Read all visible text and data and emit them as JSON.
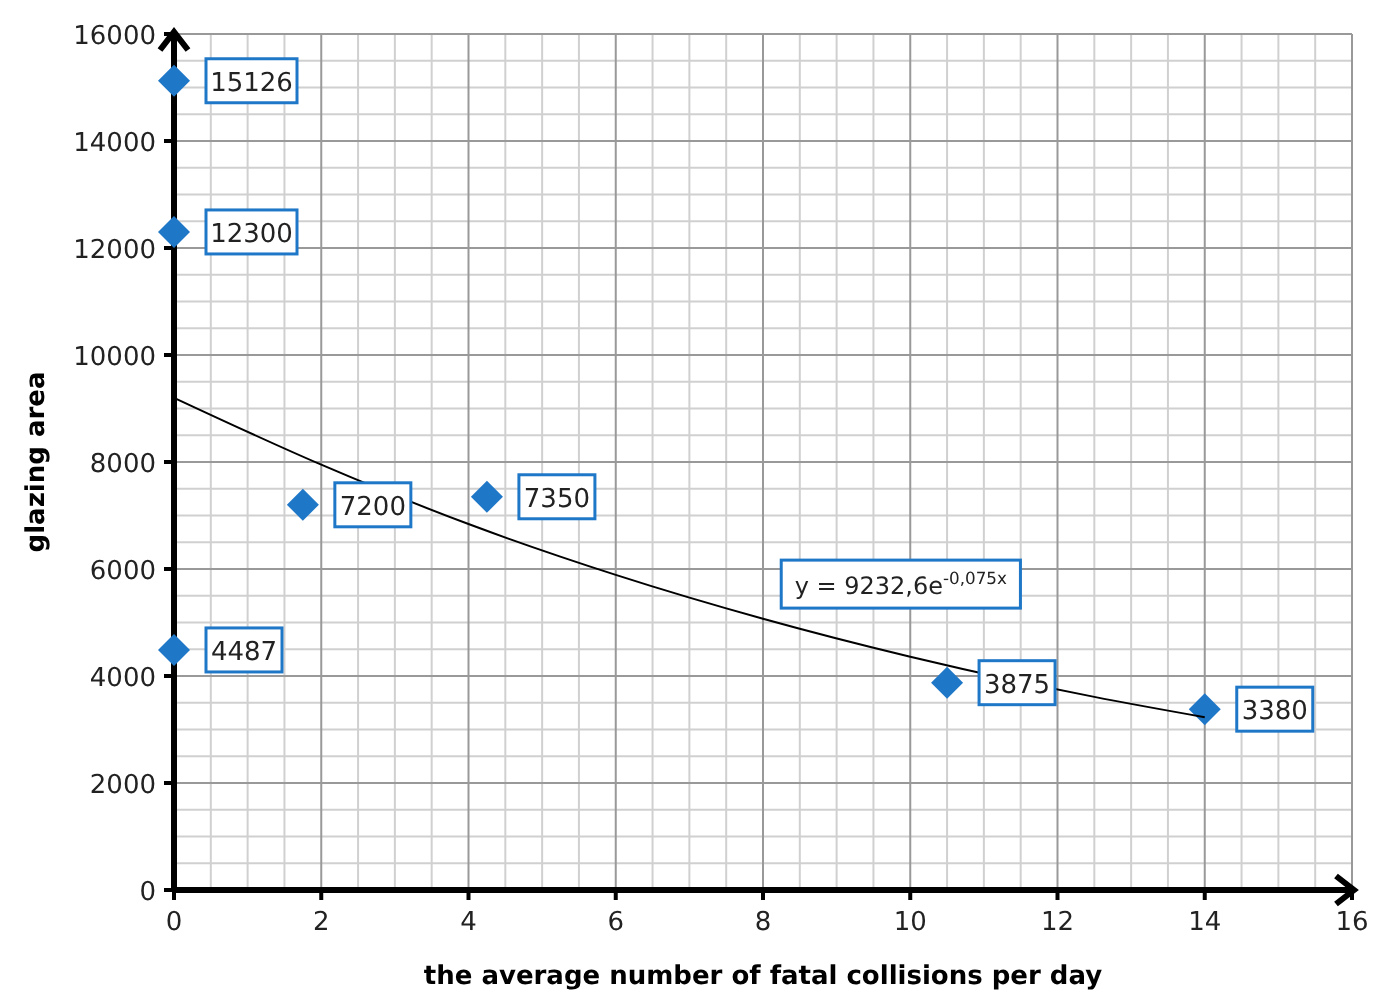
{
  "chart_data": {
    "type": "scatter",
    "xlabel": "the average number of fatal collisions per day",
    "ylabel": "glazing area",
    "xlim": [
      0,
      16
    ],
    "ylim": [
      0,
      16000
    ],
    "xticks": [
      0,
      2,
      4,
      6,
      8,
      10,
      12,
      14,
      16
    ],
    "yticks": [
      0,
      2000,
      4000,
      6000,
      8000,
      10000,
      12000,
      14000,
      16000
    ],
    "grid": true,
    "marker": "diamond",
    "annotations": [
      "y = 9232,6e$^{-0,075x}$"
    ],
    "series": [
      {
        "color": "#1f77c8",
        "x": [
          0,
          0,
          1.75,
          4.25,
          0,
          10.5,
          14
        ],
        "values": [
          15126,
          12300,
          7200,
          7350,
          4487,
          3875,
          3380
        ],
        "value_labels": [
          "15126",
          "12300",
          "7200",
          "7350",
          "4487",
          "3875",
          "3380"
        ]
      },
      {
        "type": "line",
        "color": "#000000",
        "marker": "none",
        "x": [
          0,
          2,
          4,
          6,
          8,
          10,
          12.5,
          14
        ],
        "values": [
          9200,
          7950,
          6840,
          5890,
          5070,
          4360,
          3610,
          3230
        ]
      }
    ]
  }
}
